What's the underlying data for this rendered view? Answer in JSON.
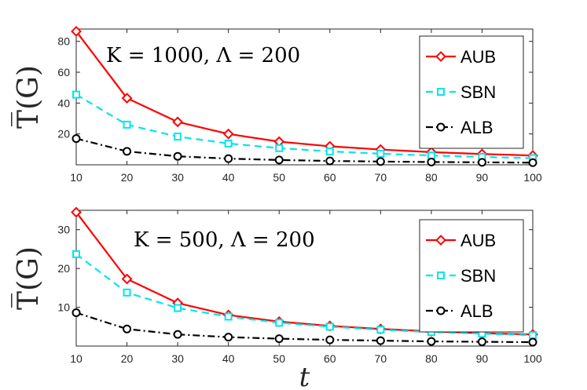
{
  "chart_data": [
    {
      "type": "line",
      "annotation": "K = 1000, Λ = 200",
      "ylabel": "T̅(G)",
      "xlabel": "",
      "x": [
        10,
        20,
        30,
        40,
        50,
        60,
        70,
        80,
        90,
        100
      ],
      "xlim": [
        10,
        100
      ],
      "ylim": [
        0,
        88
      ],
      "yticks": [
        20,
        40,
        60,
        80
      ],
      "xticks": [
        10,
        20,
        30,
        40,
        50,
        60,
        70,
        80,
        90,
        100
      ],
      "legend_position": "top-right",
      "series": [
        {
          "name": "AUB",
          "color": "#ff0000",
          "dash": "solid",
          "marker": "diamond",
          "values": [
            86.5,
            43.2,
            27.8,
            20.0,
            15.0,
            12.0,
            9.9,
            8.2,
            7.0,
            6.0
          ]
        },
        {
          "name": "SBN",
          "color": "#00e5ee",
          "dash": "dashed",
          "marker": "square",
          "values": [
            45.5,
            26.0,
            18.3,
            13.8,
            10.8,
            8.7,
            7.2,
            6.0,
            5.1,
            4.3
          ]
        },
        {
          "name": "ALB",
          "color": "#000000",
          "dash": "dashdot",
          "marker": "circle",
          "values": [
            17.0,
            8.7,
            5.5,
            4.0,
            3.1,
            2.5,
            2.1,
            1.8,
            1.6,
            1.4
          ]
        }
      ]
    },
    {
      "type": "line",
      "annotation": "K = 500, Λ = 200",
      "ylabel": "T̅(G)",
      "xlabel": "t",
      "x": [
        10,
        20,
        30,
        40,
        50,
        60,
        70,
        80,
        90,
        100
      ],
      "xlim": [
        10,
        100
      ],
      "ylim": [
        0,
        35
      ],
      "yticks": [
        10,
        20,
        30
      ],
      "xticks": [
        10,
        20,
        30,
        40,
        50,
        60,
        70,
        80,
        90,
        100
      ],
      "legend_position": "top-right",
      "series": [
        {
          "name": "AUB",
          "color": "#ff0000",
          "dash": "solid",
          "marker": "diamond",
          "values": [
            34.5,
            17.3,
            11.1,
            8.0,
            6.3,
            5.2,
            4.4,
            3.8,
            3.3,
            3.0
          ]
        },
        {
          "name": "SBN",
          "color": "#00e5ee",
          "dash": "dashed",
          "marker": "square",
          "values": [
            23.7,
            13.8,
            9.8,
            7.6,
            6.0,
            5.0,
            4.2,
            3.6,
            3.2,
            2.8
          ]
        },
        {
          "name": "ALB",
          "color": "#000000",
          "dash": "dashdot",
          "marker": "circle",
          "values": [
            8.6,
            4.4,
            3.0,
            2.3,
            1.9,
            1.6,
            1.4,
            1.2,
            1.1,
            1.0
          ]
        }
      ]
    }
  ]
}
